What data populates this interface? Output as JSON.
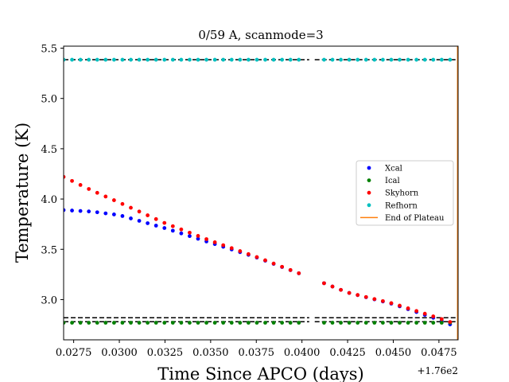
{
  "chart_data": {
    "type": "scatter",
    "title": "0/59 A, scanmode=3",
    "xlabel": "Time Since APCO (days)",
    "ylabel": "Temperature (K)",
    "x_offset_label": "+1.76e2",
    "xlim": [
      0.02695,
      0.04855
    ],
    "ylim": [
      2.6,
      5.52
    ],
    "x_ticks": [
      0.0275,
      0.03,
      0.0325,
      0.035,
      0.0375,
      0.04,
      0.0425,
      0.045,
      0.0475
    ],
    "x_tick_labels": [
      "0.0275",
      "0.0300",
      "0.0325",
      "0.0350",
      "0.0375",
      "0.0400",
      "0.0425",
      "0.0450",
      "0.0475"
    ],
    "y_ticks": [
      3.0,
      3.5,
      4.0,
      4.5,
      5.0,
      5.5
    ],
    "y_tick_labels": [
      "3.0",
      "3.5",
      "4.0",
      "4.5",
      "5.0",
      "5.5"
    ],
    "grid": false,
    "legend_placement": "center-right",
    "x_range": {
      "start": 0.02695,
      "end": 0.04855,
      "step": 0.00046
    },
    "gap": [
      0.0402,
      0.0409
    ],
    "series": [
      {
        "name": "Xcal",
        "color": "#0000ff",
        "marker": "dot",
        "keypoints": [
          [
            0.02695,
            3.89
          ],
          [
            0.0285,
            3.875
          ],
          [
            0.03,
            3.84
          ],
          [
            0.0325,
            3.71
          ],
          [
            0.035,
            3.565
          ],
          [
            0.0375,
            3.42
          ],
          [
            0.04,
            3.25
          ],
          [
            0.0425,
            3.07
          ],
          [
            0.045,
            2.955
          ],
          [
            0.0475,
            2.8
          ],
          [
            0.04855,
            2.72
          ]
        ]
      },
      {
        "name": "Ical",
        "color": "#008000",
        "marker": "dot",
        "constant": 2.77
      },
      {
        "name": "Skyhorn",
        "color": "#ff0000",
        "marker": "dot",
        "keypoints": [
          [
            0.02695,
            4.22
          ],
          [
            0.0285,
            4.085
          ],
          [
            0.03,
            3.965
          ],
          [
            0.0325,
            3.76
          ],
          [
            0.035,
            3.585
          ],
          [
            0.0375,
            3.425
          ],
          [
            0.04,
            3.25
          ],
          [
            0.0425,
            3.07
          ],
          [
            0.045,
            2.96
          ],
          [
            0.0475,
            2.815
          ],
          [
            0.04855,
            2.75
          ]
        ]
      },
      {
        "name": "Refhorn",
        "color": "#00c0c0",
        "marker": "dot",
        "constant": 5.385
      }
    ],
    "reference_lines": [
      {
        "name": "End of Plateau",
        "color": "#ff7f0e",
        "orientation": "vertical",
        "x": 0.04852
      },
      {
        "color": "#000000",
        "style": "dashed",
        "orientation": "horizontal",
        "y": 5.385
      },
      {
        "color": "#000000",
        "style": "dashed",
        "orientation": "horizontal",
        "y": 2.82
      },
      {
        "color": "#000000",
        "style": "dashed",
        "orientation": "horizontal",
        "y": 2.78
      }
    ]
  }
}
